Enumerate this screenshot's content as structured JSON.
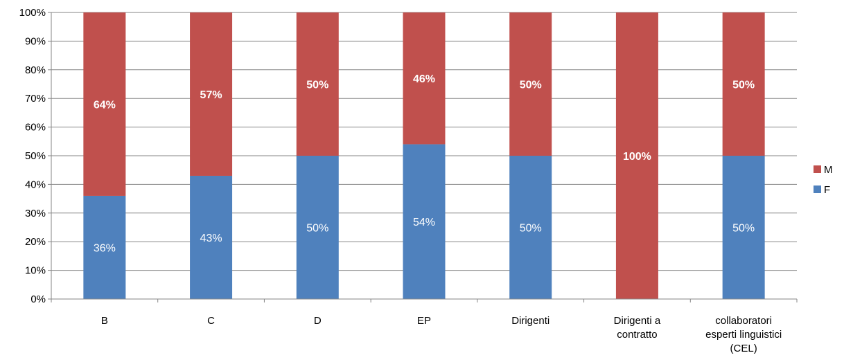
{
  "chart_data": {
    "type": "bar",
    "stacked": true,
    "percent": true,
    "title": "",
    "xlabel": "",
    "ylabel": "",
    "ylim": [
      0,
      100
    ],
    "yticks": [
      "0%",
      "10%",
      "20%",
      "30%",
      "40%",
      "50%",
      "60%",
      "70%",
      "80%",
      "90%",
      "100%"
    ],
    "grid": true,
    "legend_position": "right",
    "categories": [
      [
        "B"
      ],
      [
        "C"
      ],
      [
        "D"
      ],
      [
        "EP"
      ],
      [
        "Dirigenti"
      ],
      [
        "Dirigenti a",
        "contratto"
      ],
      [
        "collaboratori",
        "esperti linguistici",
        "(CEL)"
      ]
    ],
    "series": [
      {
        "name": "F",
        "color": "#4f81bd",
        "values": [
          36,
          43,
          50,
          54,
          50,
          0,
          50
        ],
        "labels": [
          "36%",
          "43%",
          "50%",
          "54%",
          "50%",
          "",
          "50%"
        ]
      },
      {
        "name": "M",
        "color": "#c0504d",
        "values": [
          64,
          57,
          50,
          46,
          50,
          100,
          50
        ],
        "labels": [
          "64%",
          "57%",
          "50%",
          "46%",
          "50%",
          "100%",
          "50%"
        ]
      }
    ],
    "legend_order": [
      "M",
      "F"
    ]
  }
}
